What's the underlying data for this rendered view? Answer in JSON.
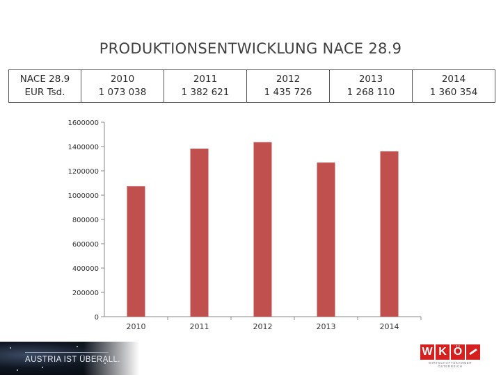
{
  "slide": {
    "title": "PRODUKTIONSENTWICKLUNG NACE 28.9"
  },
  "table": {
    "row_header": [
      "NACE 28.9",
      "EUR Tsd."
    ],
    "columns": [
      {
        "year": "2010",
        "value": "1 073 038"
      },
      {
        "year": "2011",
        "value": "1 382 621"
      },
      {
        "year": "2012",
        "value": "1 435 726"
      },
      {
        "year": "2013",
        "value": "1 268 110"
      },
      {
        "year": "2014",
        "value": "1 360 354"
      }
    ]
  },
  "chart_data": {
    "type": "bar",
    "categories": [
      "2010",
      "2011",
      "2012",
      "2013",
      "2014"
    ],
    "values": [
      1073038,
      1382621,
      1435726,
      1268110,
      1360354
    ],
    "title": "",
    "xlabel": "",
    "ylabel": "",
    "ylim": [
      0,
      1600000
    ],
    "yticks": [
      0,
      200000,
      400000,
      600000,
      800000,
      1000000,
      1200000,
      1400000,
      1600000
    ],
    "grid": false,
    "legend": "none",
    "bar_color": "#c0504d"
  },
  "footer": {
    "slogan": "AUSTRIA IST ÜBERALL.",
    "logo_letters": [
      "W",
      "K",
      "Ö"
    ],
    "logo_subtitle": "WIRTSCHAFTSKAMMER ÖSTERREICH",
    "brand_color": "#d4201f"
  }
}
